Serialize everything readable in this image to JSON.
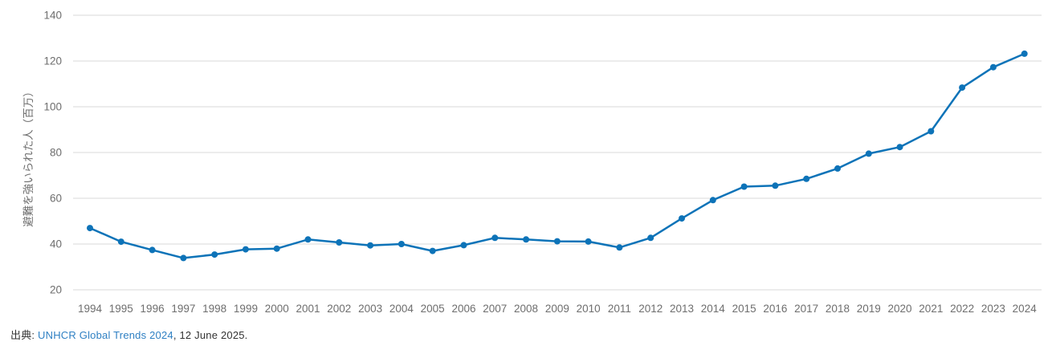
{
  "chart_data": {
    "type": "line",
    "title": "",
    "xlabel": "",
    "ylabel": "避難を強いられた人（百万）",
    "x": [
      1994,
      1995,
      1996,
      1997,
      1998,
      1999,
      2000,
      2001,
      2002,
      2003,
      2004,
      2005,
      2006,
      2007,
      2008,
      2009,
      2010,
      2011,
      2012,
      2013,
      2014,
      2015,
      2016,
      2017,
      2018,
      2019,
      2020,
      2021,
      2022,
      2023,
      2024
    ],
    "series": [
      {
        "name": "避難を強いられた人（百万）",
        "values": [
          47.0,
          41.0,
          37.4,
          33.9,
          35.4,
          37.7,
          38.0,
          42.0,
          40.7,
          39.4,
          40.0,
          37.0,
          39.5,
          42.7,
          42.0,
          41.2,
          41.1,
          38.5,
          42.7,
          51.2,
          59.2,
          65.1,
          65.5,
          68.5,
          73.0,
          79.5,
          82.4,
          89.3,
          108.4,
          117.3,
          123.2
        ]
      }
    ],
    "ylim": [
      20,
      140
    ],
    "yticks": [
      20,
      40,
      60,
      80,
      100,
      120,
      140
    ],
    "grid": "horizontal-only",
    "legend": "none",
    "marker": "circle"
  },
  "source": {
    "label": "出典: ",
    "link_text": "UNHCR Global Trends 2024",
    "suffix": ", 12 June 2025."
  },
  "colors": {
    "line": "#0d73b8",
    "grid": "#d9d9d9",
    "tick_text": "#6e6e6e",
    "axis_title_text": "#6e6e6e",
    "source_text": "#333333",
    "link": "#2f80c3",
    "background": "#ffffff"
  }
}
